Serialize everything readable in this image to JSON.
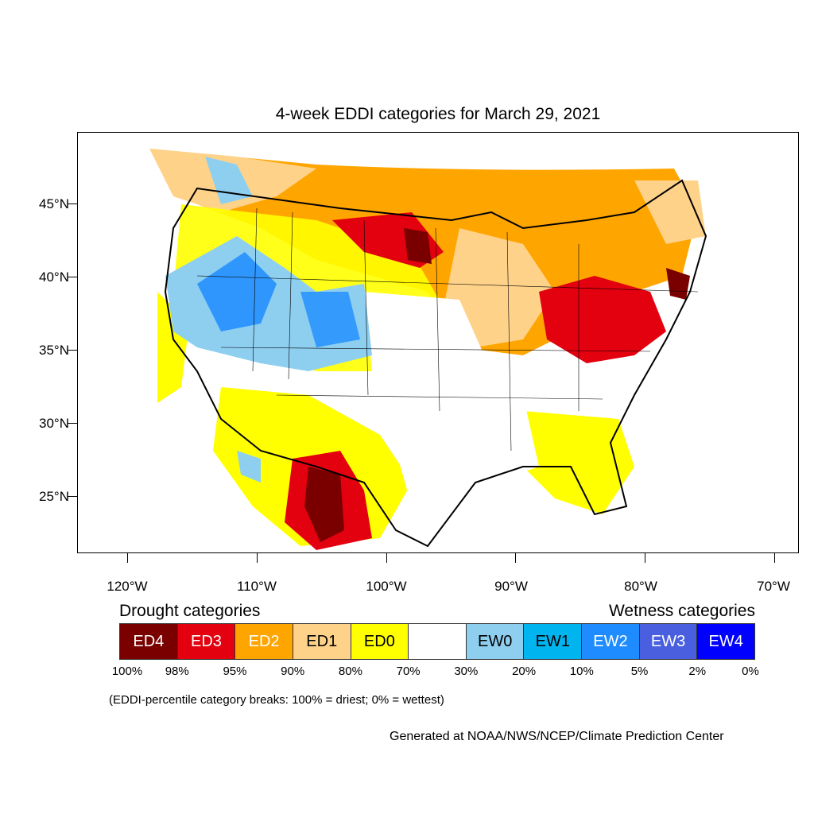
{
  "title": "4-week EDDI categories for March 29, 2021",
  "axes": {
    "lat_labels": [
      "45°N",
      "40°N",
      "35°N",
      "30°N",
      "25°N"
    ],
    "lon_labels": [
      "120°W",
      "110°W",
      "100°W",
      "90°W",
      "80°W",
      "70°W"
    ]
  },
  "legend": {
    "drought_heading": "Drought categories",
    "wetness_heading": "Wetness categories",
    "categories": [
      {
        "label": "ED4",
        "color": "#7a0000",
        "text_color": "#ffffff"
      },
      {
        "label": "ED3",
        "color": "#e3000f",
        "text_color": "#ffffff"
      },
      {
        "label": "ED2",
        "color": "#ffa500",
        "text_color": "#ffffff"
      },
      {
        "label": "ED1",
        "color": "#ffd28a",
        "text_color": "#000000"
      },
      {
        "label": "ED0",
        "color": "#ffff00",
        "text_color": "#000000"
      },
      {
        "label": "",
        "color": "#ffffff",
        "text_color": "#000000"
      },
      {
        "label": "EW0",
        "color": "#8ecff0",
        "text_color": "#000000"
      },
      {
        "label": "EW1",
        "color": "#00b4f0",
        "text_color": "#000000"
      },
      {
        "label": "EW2",
        "color": "#1e8cff",
        "text_color": "#ffffff"
      },
      {
        "label": "EW3",
        "color": "#4a5fe0",
        "text_color": "#ffffff"
      },
      {
        "label": "EW4",
        "color": "#0000ff",
        "text_color": "#ffffff"
      }
    ],
    "breaks": [
      "100%",
      "98%",
      "95%",
      "90%",
      "80%",
      "70%",
      "30%",
      "20%",
      "10%",
      "5%",
      "2%",
      "0%"
    ]
  },
  "note": "(EDDI-percentile category breaks: 100% = driest; 0% = wettest)",
  "credit": "Generated at NOAA/NWS/NCEP/Climate Prediction Center"
}
